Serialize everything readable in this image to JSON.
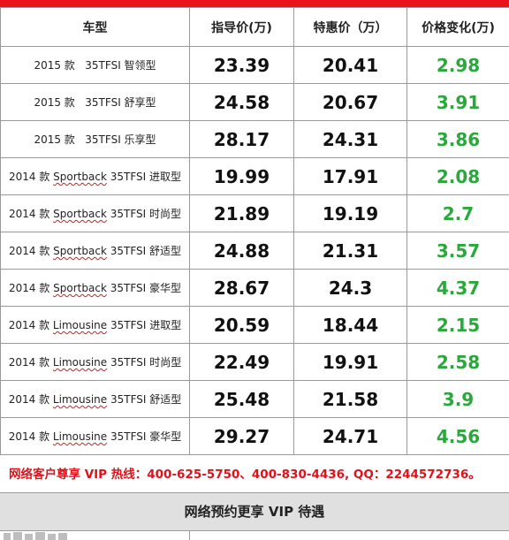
{
  "table": {
    "headers": [
      "车型",
      "指导价(万)",
      "特惠价（万）",
      "价格变化(万)"
    ],
    "rows": [
      {
        "year": "2015 款",
        "line": "",
        "trim": "35TFSI 智领型",
        "guide": "23.39",
        "special": "20.41",
        "change": "2.98"
      },
      {
        "year": "2015 款",
        "line": "",
        "trim": "35TFSI 舒享型",
        "guide": "24.58",
        "special": "20.67",
        "change": "3.91"
      },
      {
        "year": "2015 款",
        "line": "",
        "trim": "35TFSI 乐享型",
        "guide": "28.17",
        "special": "24.31",
        "change": "3.86"
      },
      {
        "year": "2014 款",
        "line": "Sportback",
        "trim": "35TFSI 进取型",
        "guide": "19.99",
        "special": "17.91",
        "change": "2.08"
      },
      {
        "year": "2014 款",
        "line": "Sportback",
        "trim": "35TFSI 时尚型",
        "guide": "21.89",
        "special": "19.19",
        "change": "2.7"
      },
      {
        "year": "2014 款",
        "line": "Sportback",
        "trim": "35TFSI 舒适型",
        "guide": "24.88",
        "special": "21.31",
        "change": "3.57"
      },
      {
        "year": "2014 款",
        "line": "Sportback",
        "trim": "35TFSI 豪华型",
        "guide": "28.67",
        "special": "24.3",
        "change": "4.37"
      },
      {
        "year": "2014 款",
        "line": "Limousine",
        "trim": "35TFSI 进取型",
        "guide": "20.59",
        "special": "18.44",
        "change": "2.15"
      },
      {
        "year": "2014 款",
        "line": "Limousine",
        "trim": "35TFSI 时尚型",
        "guide": "22.49",
        "special": "19.91",
        "change": "2.58"
      },
      {
        "year": "2014 款",
        "line": "Limousine",
        "trim": "35TFSI 舒适型",
        "guide": "25.48",
        "special": "21.58",
        "change": "3.9"
      },
      {
        "year": "2014 款",
        "line": "Limousine",
        "trim": "35TFSI 豪华型",
        "guide": "29.27",
        "special": "24.71",
        "change": "4.56"
      }
    ]
  },
  "hotline": "网络客户尊享 VIP 热线：400-625-5750、400-830-4436,   QQ：2244572736。",
  "vip_banner": "网络预约更享 VIP 待遇",
  "colors": {
    "accent_red": "#e3101a",
    "change_green": "#2aa83c",
    "band_gray": "#e0e0e0"
  }
}
